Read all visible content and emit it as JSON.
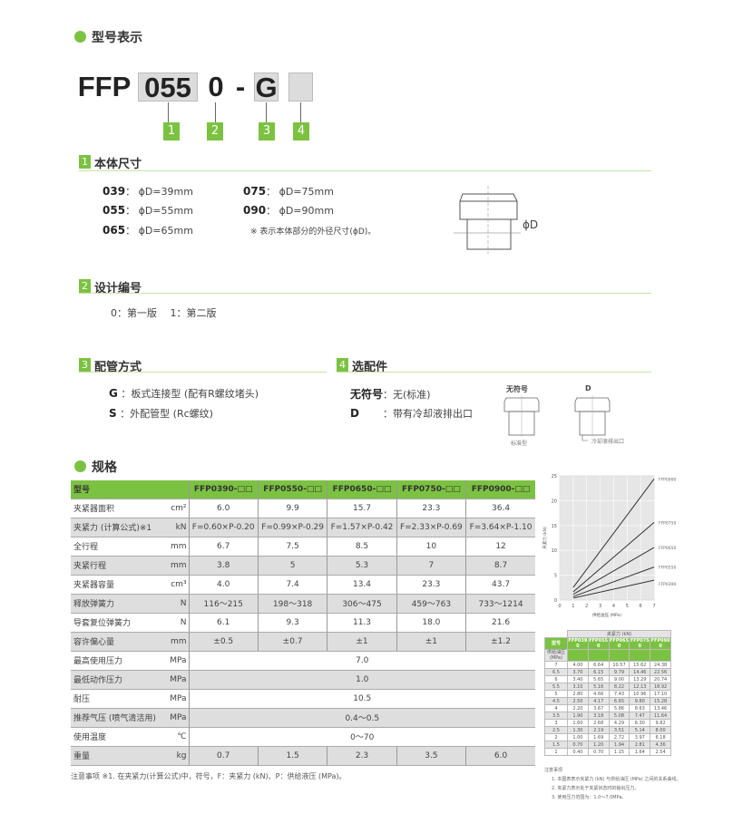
{
  "accent_color": "#7cc242",
  "model_section": {
    "title": "型号表示",
    "prefix": "FFP",
    "size": "055",
    "design": "0",
    "dash": "-",
    "piping": "G",
    "option": "",
    "numbers": [
      "1",
      "2",
      "3",
      "4"
    ]
  },
  "section1": {
    "num": "1",
    "title": "本体尺寸",
    "items": [
      {
        "code": "039",
        "sep": "：",
        "value": "ϕD=39mm"
      },
      {
        "code": "055",
        "sep": "：",
        "value": "ϕD=55mm"
      },
      {
        "code": "065",
        "sep": "：",
        "value": "ϕD=65mm"
      },
      {
        "code": "075",
        "sep": "：",
        "value": "ϕD=75mm"
      },
      {
        "code": "090",
        "sep": "：",
        "value": "ϕD=90mm"
      }
    ],
    "note": "※ 表示本体部分的外径尺寸(ϕD)。",
    "diagram_label": "ϕD"
  },
  "section2": {
    "num": "2",
    "title": "设计编号",
    "text": "0：第一版　 1：第二版"
  },
  "section3": {
    "num": "3",
    "title": "配管方式",
    "items": [
      {
        "code": "G",
        "text": "：板式连接型 (配有R螺纹堵头)"
      },
      {
        "code": "S",
        "text": "：外配管型 (Rc螺纹)"
      }
    ]
  },
  "section4": {
    "num": "4",
    "title": "选配件",
    "items": [
      {
        "code": "无符号",
        "text": "：无(标准)"
      },
      {
        "code": "D",
        "text": "：带有冷却液排出口"
      }
    ],
    "diagram1_title": "无符号",
    "diagram1_caption": "标准型",
    "diagram2_title": "D",
    "diagram2_caption": "冷却液排出口"
  },
  "spec": {
    "title": "规格",
    "header": {
      "label": "型号",
      "models": [
        "FFP0390-□□",
        "FFP0550-□□",
        "FFP0650-□□",
        "FFP0750-□□",
        "FFP0900-□□"
      ]
    },
    "rows": [
      {
        "label": "夹紧器面积",
        "unit": "cm²",
        "values": [
          "6.0",
          "9.9",
          "15.7",
          "23.3",
          "36.4"
        ]
      },
      {
        "label": "夹紧力 (计算公式)※1",
        "unit": "kN",
        "values": [
          "F=0.60×P-0.20",
          "F=0.99×P-0.29",
          "F=1.57×P-0.42",
          "F=2.33×P-0.69",
          "F=3.64×P-1.10"
        ]
      },
      {
        "label": "全行程",
        "unit": "mm",
        "values": [
          "6.7",
          "7.5",
          "8.5",
          "10",
          "12"
        ]
      },
      {
        "label": "夹紧行程",
        "unit": "mm",
        "values": [
          "3.8",
          "5",
          "5.3",
          "7",
          "8.7"
        ]
      },
      {
        "label": "夹紧器容量",
        "unit": "cm³",
        "values": [
          "4.0",
          "7.4",
          "13.4",
          "23.3",
          "43.7"
        ]
      },
      {
        "label": "释放弹簧力",
        "unit": "N",
        "values": [
          "116～215",
          "198～318",
          "306～475",
          "459～763",
          "733～1214"
        ]
      },
      {
        "label": "导套复位弹簧力",
        "unit": "N",
        "values": [
          "6.1",
          "9.3",
          "11.3",
          "18.0",
          "21.6"
        ]
      },
      {
        "label": "容许偏心量",
        "unit": "mm",
        "values": [
          "±0.5",
          "±0.7",
          "±1",
          "±1",
          "±1.2"
        ]
      },
      {
        "label": "最高使用压力",
        "unit": "MPa",
        "merged": "7.0"
      },
      {
        "label": "最低动作压力",
        "unit": "MPa",
        "merged": "1.0"
      },
      {
        "label": "耐压",
        "unit": "MPa",
        "merged": "10.5"
      },
      {
        "label": "推荐气压 (喷气清洁用)",
        "unit": "MPa",
        "merged": "0.4～0.5"
      },
      {
        "label": "使用温度",
        "unit": "℃",
        "merged": "0～70"
      },
      {
        "label": "重量",
        "unit": "kg",
        "values": [
          "0.7",
          "1.5",
          "2.3",
          "3.5",
          "6.0"
        ]
      }
    ],
    "footnote": "注意事项 ※1. 在夹紧力(计算公式)中，符号，F：夹紧力 (kN)、P：供给液压 (MPa)。"
  },
  "chart_data": {
    "type": "line",
    "xlabel": "供给油压 (MPa)",
    "ylabel": "夹紧力 (kN)",
    "xlim": [
      0,
      7
    ],
    "ylim": [
      0,
      25
    ],
    "xticks": [
      "0",
      "1",
      "2",
      "3",
      "4",
      "5",
      "6",
      "7"
    ],
    "yticks": [
      "0",
      "5",
      "10",
      "15",
      "20",
      "25"
    ],
    "grid": true,
    "legend": "right",
    "x": [
      1,
      7
    ],
    "series": [
      {
        "name": "FFP0900",
        "values": [
          2.54,
          24.38
        ]
      },
      {
        "name": "FFP0750",
        "values": [
          1.64,
          15.62
        ]
      },
      {
        "name": "FFP0650",
        "values": [
          1.15,
          10.57
        ]
      },
      {
        "name": "FFP0550",
        "values": [
          0.7,
          6.64
        ]
      },
      {
        "name": "FFP0390",
        "values": [
          0.4,
          4.0
        ]
      }
    ]
  },
  "force_table": {
    "group_header": "夹紧力 (kN)",
    "model_label": "型号",
    "pressure_label": "供给油压 (MPa)",
    "models": [
      "FFP0390",
      "FFP0550",
      "FFP0650",
      "FFP0750",
      "FFP0900"
    ],
    "rows": [
      [
        "7",
        "4.00",
        "6.64",
        "10.57",
        "15.62",
        "24.38"
      ],
      [
        "6.5",
        "3.70",
        "6.15",
        "9.79",
        "14.46",
        "22.56"
      ],
      [
        "6",
        "3.40",
        "5.65",
        "9.00",
        "13.29",
        "20.74"
      ],
      [
        "5.5",
        "3.10",
        "5.16",
        "8.22",
        "12.13",
        "18.92"
      ],
      [
        "5",
        "2.80",
        "4.66",
        "7.43",
        "10.96",
        "17.10"
      ],
      [
        "4.5",
        "2.50",
        "4.17",
        "6.65",
        "9.80",
        "15.28"
      ],
      [
        "4",
        "2.20",
        "3.67",
        "5.86",
        "8.63",
        "13.46"
      ],
      [
        "3.5",
        "1.90",
        "3.18",
        "5.08",
        "7.47",
        "11.64"
      ],
      [
        "3",
        "1.60",
        "2.68",
        "4.29",
        "6.30",
        "9.82"
      ],
      [
        "2.5",
        "1.30",
        "2.19",
        "3.51",
        "5.14",
        "8.00"
      ],
      [
        "2",
        "1.00",
        "1.69",
        "2.72",
        "3.97",
        "6.18"
      ],
      [
        "1.5",
        "0.70",
        "1.20",
        "1.94",
        "2.81",
        "4.36"
      ],
      [
        "1",
        "0.40",
        "0.70",
        "1.15",
        "1.64",
        "2.54"
      ]
    ],
    "notes_title": "注意事项",
    "notes": [
      "1. 本图表表示夹紧力 (kN) 与供给油压 (MPa) 之间的关系曲线。",
      "2. 夹紧力表示处于夹紧状态时的输出压力。",
      "3. 使用压力范围为：1.0～7.0MPa。"
    ]
  }
}
